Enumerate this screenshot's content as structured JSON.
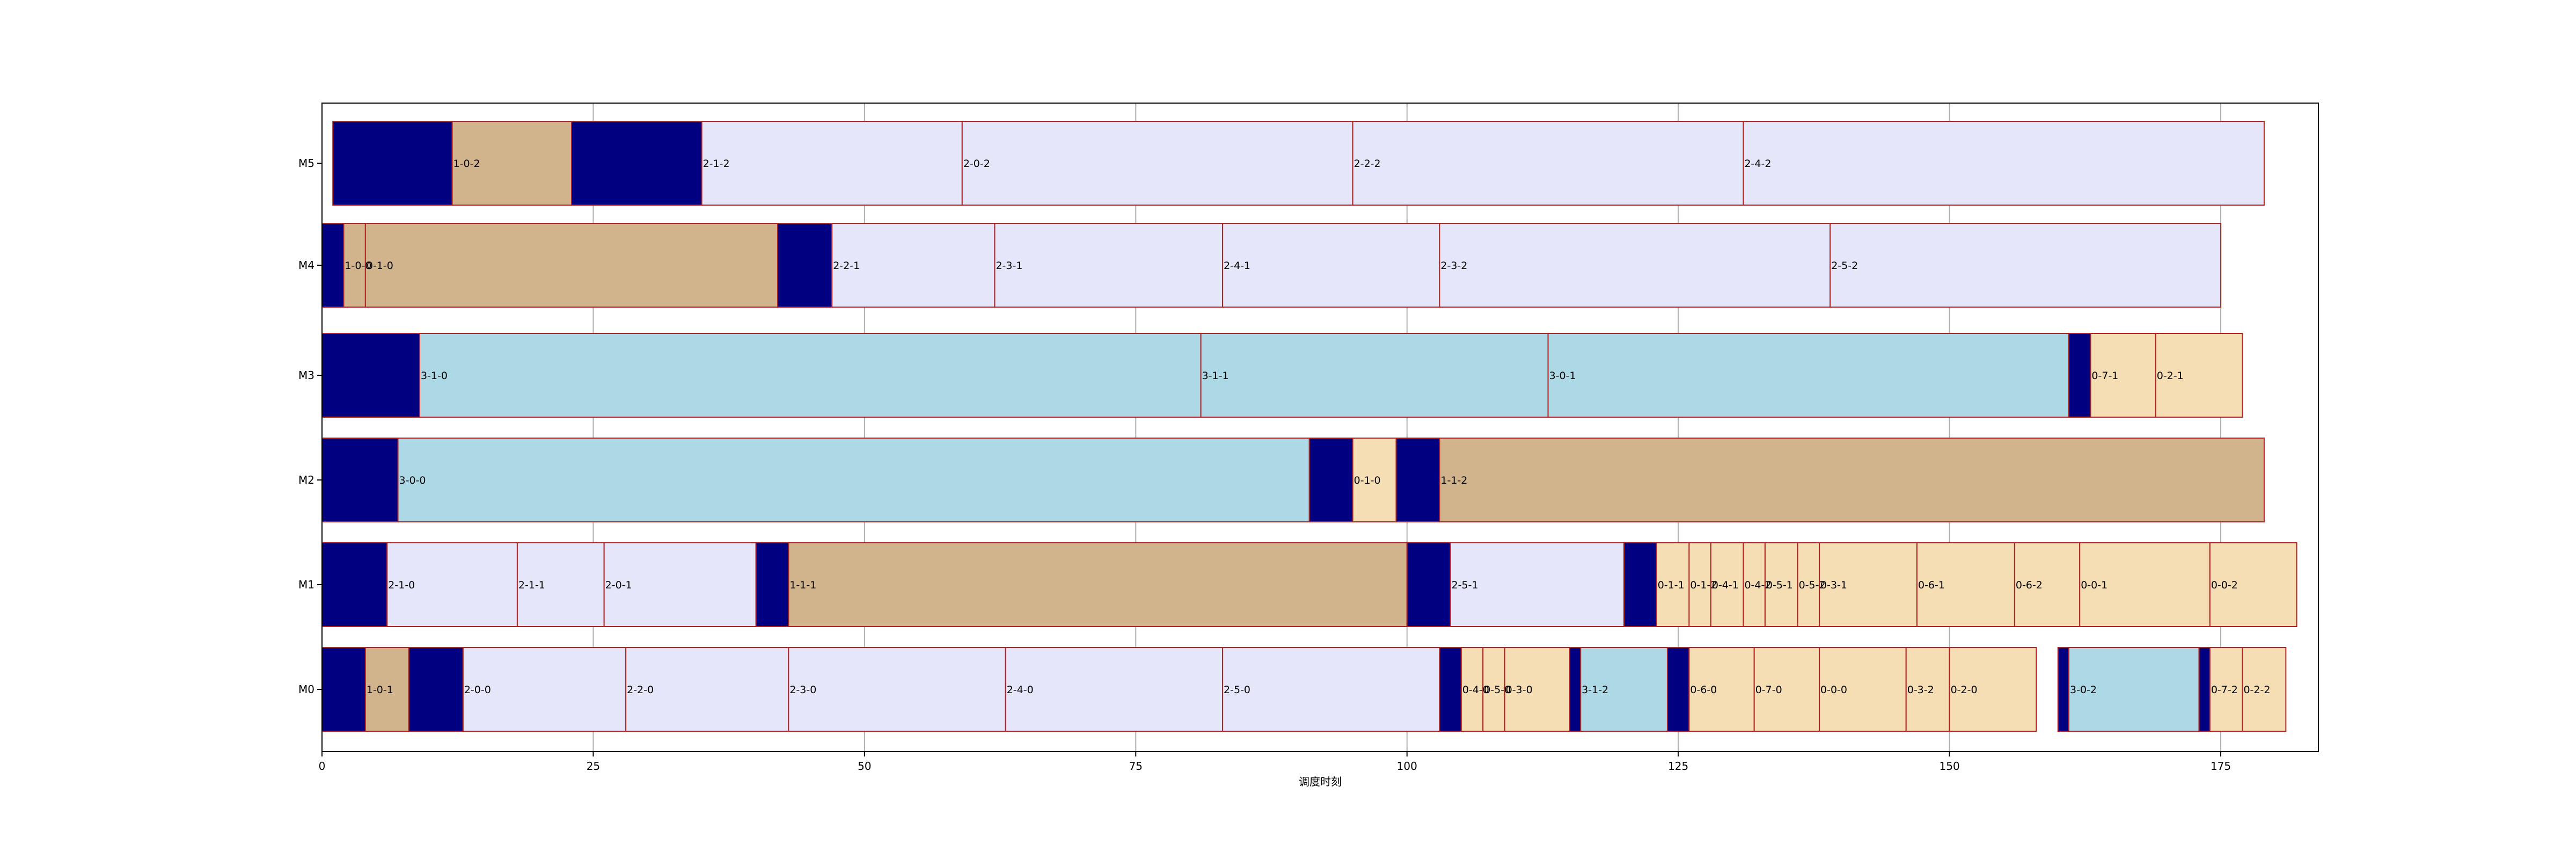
{
  "chart_data": {
    "type": "gantt",
    "xlabel": "调度时刻",
    "ylabel": "",
    "xlim": [
      0,
      184
    ],
    "xticks": [
      0,
      25,
      50,
      75,
      100,
      125,
      150,
      175
    ],
    "grid": "vertical",
    "rows": [
      "M0",
      "M1",
      "M2",
      "M3",
      "M4",
      "M5"
    ],
    "colors": {
      "setup": "#000080",
      "lavender": "#E6E6FA",
      "tan": "#D2B48C",
      "lightblue": "#ADD8E6",
      "wheat": "#F5DEB3",
      "edge": "#B22222"
    },
    "tasks": [
      {
        "row": "M0",
        "start": 0,
        "end": 4,
        "color": "setup",
        "label": ""
      },
      {
        "row": "M0",
        "start": 4,
        "end": 8,
        "color": "tan",
        "label": "1-0-1"
      },
      {
        "row": "M0",
        "start": 8,
        "end": 13,
        "color": "setup",
        "label": ""
      },
      {
        "row": "M0",
        "start": 13,
        "end": 28,
        "color": "lavender",
        "label": "2-0-0"
      },
      {
        "row": "M0",
        "start": 28,
        "end": 43,
        "color": "lavender",
        "label": "2-2-0"
      },
      {
        "row": "M0",
        "start": 43,
        "end": 63,
        "color": "lavender",
        "label": "2-3-0"
      },
      {
        "row": "M0",
        "start": 63,
        "end": 83,
        "color": "lavender",
        "label": "2-4-0"
      },
      {
        "row": "M0",
        "start": 83,
        "end": 103,
        "color": "lavender",
        "label": "2-5-0"
      },
      {
        "row": "M0",
        "start": 103,
        "end": 105,
        "color": "setup",
        "label": ""
      },
      {
        "row": "M0",
        "start": 105,
        "end": 107,
        "color": "wheat",
        "label": "0-4-0"
      },
      {
        "row": "M0",
        "start": 107,
        "end": 109,
        "color": "wheat",
        "label": "0-5-0"
      },
      {
        "row": "M0",
        "start": 109,
        "end": 115,
        "color": "wheat",
        "label": "0-3-0"
      },
      {
        "row": "M0",
        "start": 115,
        "end": 116,
        "color": "setup",
        "label": ""
      },
      {
        "row": "M0",
        "start": 116,
        "end": 124,
        "color": "lightblue",
        "label": "3-1-2"
      },
      {
        "row": "M0",
        "start": 124,
        "end": 126,
        "color": "setup",
        "label": ""
      },
      {
        "row": "M0",
        "start": 126,
        "end": 132,
        "color": "wheat",
        "label": "0-6-0"
      },
      {
        "row": "M0",
        "start": 132,
        "end": 138,
        "color": "wheat",
        "label": "0-7-0"
      },
      {
        "row": "M0",
        "start": 138,
        "end": 146,
        "color": "wheat",
        "label": "0-0-0"
      },
      {
        "row": "M0",
        "start": 146,
        "end": 150,
        "color": "wheat",
        "label": "0-3-2"
      },
      {
        "row": "M0",
        "start": 150,
        "end": 158,
        "color": "wheat",
        "label": "0-2-0"
      },
      {
        "row": "M0",
        "start": 160,
        "end": 161,
        "color": "setup",
        "label": ""
      },
      {
        "row": "M0",
        "start": 161,
        "end": 173,
        "color": "lightblue",
        "label": "3-0-2"
      },
      {
        "row": "M0",
        "start": 173,
        "end": 174,
        "color": "setup",
        "label": ""
      },
      {
        "row": "M0",
        "start": 174,
        "end": 177,
        "color": "wheat",
        "label": "0-7-2"
      },
      {
        "row": "M0",
        "start": 177,
        "end": 181,
        "color": "wheat",
        "label": "0-2-2"
      },
      {
        "row": "M1",
        "start": 0,
        "end": 6,
        "color": "setup",
        "label": ""
      },
      {
        "row": "M1",
        "start": 6,
        "end": 18,
        "color": "lavender",
        "label": "2-1-0"
      },
      {
        "row": "M1",
        "start": 18,
        "end": 26,
        "color": "lavender",
        "label": "2-1-1"
      },
      {
        "row": "M1",
        "start": 26,
        "end": 40,
        "color": "lavender",
        "label": "2-0-1"
      },
      {
        "row": "M1",
        "start": 40,
        "end": 43,
        "color": "setup",
        "label": ""
      },
      {
        "row": "M1",
        "start": 43,
        "end": 100,
        "color": "tan",
        "label": "1-1-1"
      },
      {
        "row": "M1",
        "start": 100,
        "end": 104,
        "color": "setup",
        "label": ""
      },
      {
        "row": "M1",
        "start": 104,
        "end": 120,
        "color": "lavender",
        "label": "2-5-1"
      },
      {
        "row": "M1",
        "start": 120,
        "end": 123,
        "color": "setup",
        "label": ""
      },
      {
        "row": "M1",
        "start": 123,
        "end": 126,
        "color": "wheat",
        "label": "0-1-1"
      },
      {
        "row": "M1",
        "start": 126,
        "end": 128,
        "color": "wheat",
        "label": "0-1-2"
      },
      {
        "row": "M1",
        "start": 128,
        "end": 131,
        "color": "wheat",
        "label": "0-4-1"
      },
      {
        "row": "M1",
        "start": 131,
        "end": 133,
        "color": "wheat",
        "label": "0-4-2"
      },
      {
        "row": "M1",
        "start": 133,
        "end": 136,
        "color": "wheat",
        "label": "0-5-1"
      },
      {
        "row": "M1",
        "start": 136,
        "end": 138,
        "color": "wheat",
        "label": "0-5-2"
      },
      {
        "row": "M1",
        "start": 138,
        "end": 147,
        "color": "wheat",
        "label": "0-3-1"
      },
      {
        "row": "M1",
        "start": 147,
        "end": 156,
        "color": "wheat",
        "label": "0-6-1"
      },
      {
        "row": "M1",
        "start": 156,
        "end": 162,
        "color": "wheat",
        "label": "0-6-2"
      },
      {
        "row": "M1",
        "start": 162,
        "end": 174,
        "color": "wheat",
        "label": "0-0-1"
      },
      {
        "row": "M1",
        "start": 174,
        "end": 182,
        "color": "wheat",
        "label": "0-0-2"
      },
      {
        "row": "M2",
        "start": 0,
        "end": 7,
        "color": "setup",
        "label": ""
      },
      {
        "row": "M2",
        "start": 7,
        "end": 91,
        "color": "lightblue",
        "label": "3-0-0"
      },
      {
        "row": "M2",
        "start": 91,
        "end": 95,
        "color": "setup",
        "label": ""
      },
      {
        "row": "M2",
        "start": 95,
        "end": 99,
        "color": "wheat",
        "label": "0-1-0"
      },
      {
        "row": "M2",
        "start": 99,
        "end": 103,
        "color": "setup",
        "label": ""
      },
      {
        "row": "M2",
        "start": 103,
        "end": 179,
        "color": "tan",
        "label": "1-1-2"
      },
      {
        "row": "M3",
        "start": 0,
        "end": 9,
        "color": "setup",
        "label": ""
      },
      {
        "row": "M3",
        "start": 9,
        "end": 81,
        "color": "lightblue",
        "label": "3-1-0"
      },
      {
        "row": "M3",
        "start": 81,
        "end": 113,
        "color": "lightblue",
        "label": "3-1-1"
      },
      {
        "row": "M3",
        "start": 113,
        "end": 161,
        "color": "lightblue",
        "label": "3-0-1"
      },
      {
        "row": "M3",
        "start": 161,
        "end": 163,
        "color": "setup",
        "label": ""
      },
      {
        "row": "M3",
        "start": 163,
        "end": 169,
        "color": "wheat",
        "label": "0-7-1"
      },
      {
        "row": "M3",
        "start": 169,
        "end": 177,
        "color": "wheat",
        "label": "0-2-1"
      },
      {
        "row": "M4",
        "start": 0,
        "end": 2,
        "color": "setup",
        "label": ""
      },
      {
        "row": "M4",
        "start": 2,
        "end": 4,
        "color": "tan",
        "label": "1-0-0"
      },
      {
        "row": "M4",
        "start": 4,
        "end": 42,
        "color": "tan",
        "label": "0-1-0"
      },
      {
        "row": "M4",
        "start": 42,
        "end": 47,
        "color": "setup",
        "label": ""
      },
      {
        "row": "M4",
        "start": 47,
        "end": 62,
        "color": "lavender",
        "label": "2-2-1"
      },
      {
        "row": "M4",
        "start": 62,
        "end": 83,
        "color": "lavender",
        "label": "2-3-1"
      },
      {
        "row": "M4",
        "start": 83,
        "end": 103,
        "color": "lavender",
        "label": "2-4-1"
      },
      {
        "row": "M4",
        "start": 103,
        "end": 139,
        "color": "lavender",
        "label": "2-3-2"
      },
      {
        "row": "M4",
        "start": 139,
        "end": 175,
        "color": "lavender",
        "label": "2-5-2"
      },
      {
        "row": "M5",
        "start": 1,
        "end": 12,
        "color": "setup",
        "label": ""
      },
      {
        "row": "M5",
        "start": 12,
        "end": 23,
        "color": "tan",
        "label": "1-0-2"
      },
      {
        "row": "M5",
        "start": 23,
        "end": 35,
        "color": "setup",
        "label": ""
      },
      {
        "row": "M5",
        "start": 35,
        "end": 59,
        "color": "lavender",
        "label": "2-1-2"
      },
      {
        "row": "M5",
        "start": 59,
        "end": 95,
        "color": "lavender",
        "label": "2-0-2"
      },
      {
        "row": "M5",
        "start": 95,
        "end": 131,
        "color": "lavender",
        "label": "2-2-2"
      },
      {
        "row": "M5",
        "start": 131,
        "end": 179,
        "color": "lavender",
        "label": "2-4-2"
      }
    ]
  }
}
